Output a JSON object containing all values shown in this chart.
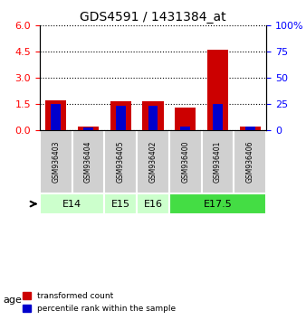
{
  "title": "GDS4591 / 1431384_at",
  "samples": [
    "GSM936403",
    "GSM936404",
    "GSM936405",
    "GSM936402",
    "GSM936400",
    "GSM936401",
    "GSM936406"
  ],
  "transformed_counts": [
    1.7,
    0.2,
    1.65,
    1.65,
    1.3,
    4.6,
    0.25
  ],
  "percentile_ranks_pct": [
    25,
    2.5,
    24,
    24,
    3.5,
    25,
    3.5
  ],
  "age_groups": [
    {
      "label": "E14",
      "samples": [
        0,
        1
      ],
      "color": "#ccffcc"
    },
    {
      "label": "E15",
      "samples": [
        2
      ],
      "color": "#ccffcc"
    },
    {
      "label": "E16",
      "samples": [
        3
      ],
      "color": "#ccffcc"
    },
    {
      "label": "E17.5",
      "samples": [
        4,
        5,
        6
      ],
      "color": "#44dd44"
    }
  ],
  "ylim_left": [
    0,
    6
  ],
  "ylim_right": [
    0,
    100
  ],
  "yticks_left": [
    0,
    1.5,
    3.0,
    4.5,
    6
  ],
  "yticks_right": [
    0,
    25,
    50,
    75,
    100
  ],
  "ytick_right_labels": [
    "0",
    "25",
    "50",
    "75",
    "100%"
  ],
  "bar_color_red": "#cc0000",
  "bar_color_blue": "#0000cc",
  "background_color": "#ffffff",
  "label_transformed": "transformed count",
  "label_percentile": "percentile rank within the sample",
  "age_label": "age"
}
